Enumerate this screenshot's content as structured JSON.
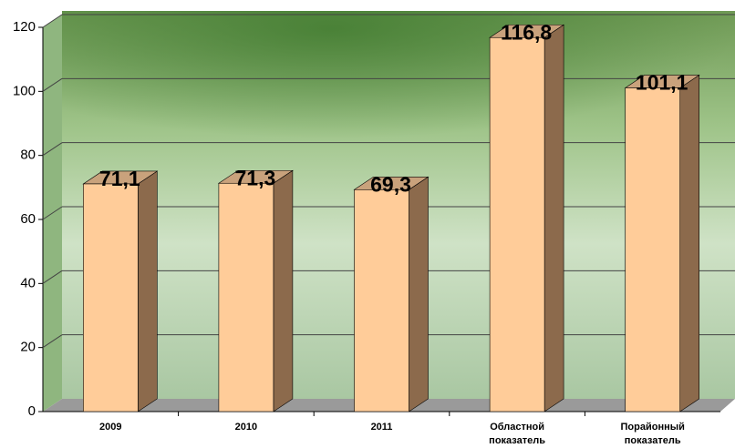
{
  "chart_data": {
    "type": "bar3d",
    "categories": [
      "2009",
      "2010",
      "2011",
      "Областной показатель",
      "Порайонный показатель"
    ],
    "values": [
      71.1,
      71.3,
      69.3,
      116.8,
      101.1
    ],
    "value_labels": [
      "71,1",
      "71,3",
      "69,3",
      "116,8",
      "101,1"
    ],
    "colors": {
      "front": "#ffcc99",
      "side": "#8c6a4c",
      "top": "#c9a27c"
    },
    "ylim": [
      0,
      120
    ],
    "yticks": [
      0,
      20,
      40,
      60,
      80,
      100,
      120
    ],
    "grid": true
  }
}
